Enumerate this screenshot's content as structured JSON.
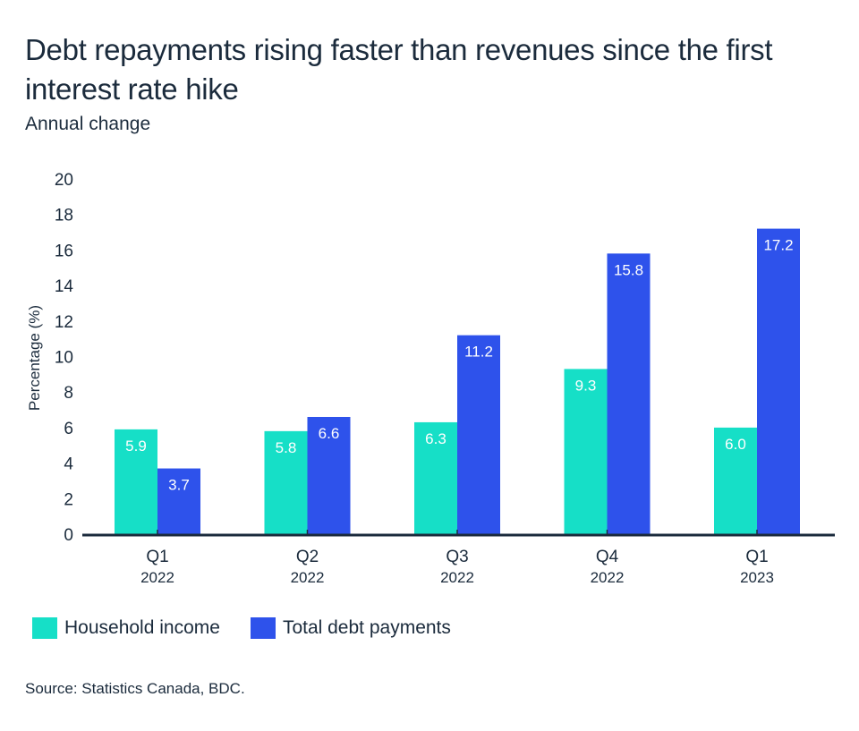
{
  "header": {
    "title": "Debt repayments rising faster than revenues since the first interest rate hike",
    "subtitle": "Annual change"
  },
  "footer": {
    "source": "Source: Statistics Canada, BDC."
  },
  "colors": {
    "household_income": "#16dfc7",
    "total_debt_payments": "#2e52eb",
    "axis": "#1b2b3c",
    "text": "#1b2b3c",
    "value_label": "#ffffff"
  },
  "chart_data": {
    "type": "bar",
    "title": "Debt repayments rising faster than revenues since the first interest rate hike",
    "subtitle": "Annual change",
    "xlabel": "",
    "ylabel": "Percentage (%)",
    "ylim": [
      0,
      20
    ],
    "yticks": [
      0,
      2,
      4,
      6,
      8,
      10,
      12,
      14,
      16,
      18,
      20
    ],
    "grid": false,
    "legend_position": "bottom-left",
    "categories": [
      {
        "quarter": "Q1",
        "year": "2022"
      },
      {
        "quarter": "Q2",
        "year": "2022"
      },
      {
        "quarter": "Q3",
        "year": "2022"
      },
      {
        "quarter": "Q4",
        "year": "2022"
      },
      {
        "quarter": "Q1",
        "year": "2023"
      }
    ],
    "series": [
      {
        "name": "Household income",
        "color": "#16dfc7",
        "values": [
          5.9,
          5.8,
          6.3,
          9.3,
          6.0
        ],
        "labels": [
          "5.9",
          "5.8",
          "6.3",
          "9.3",
          "6.0"
        ]
      },
      {
        "name": "Total debt payments",
        "color": "#2e52eb",
        "values": [
          3.7,
          6.6,
          11.2,
          15.8,
          17.2
        ],
        "labels": [
          "3.7",
          "6.6",
          "11.2",
          "15.8",
          "17.2"
        ]
      }
    ],
    "source": "Source: Statistics Canada, BDC."
  }
}
